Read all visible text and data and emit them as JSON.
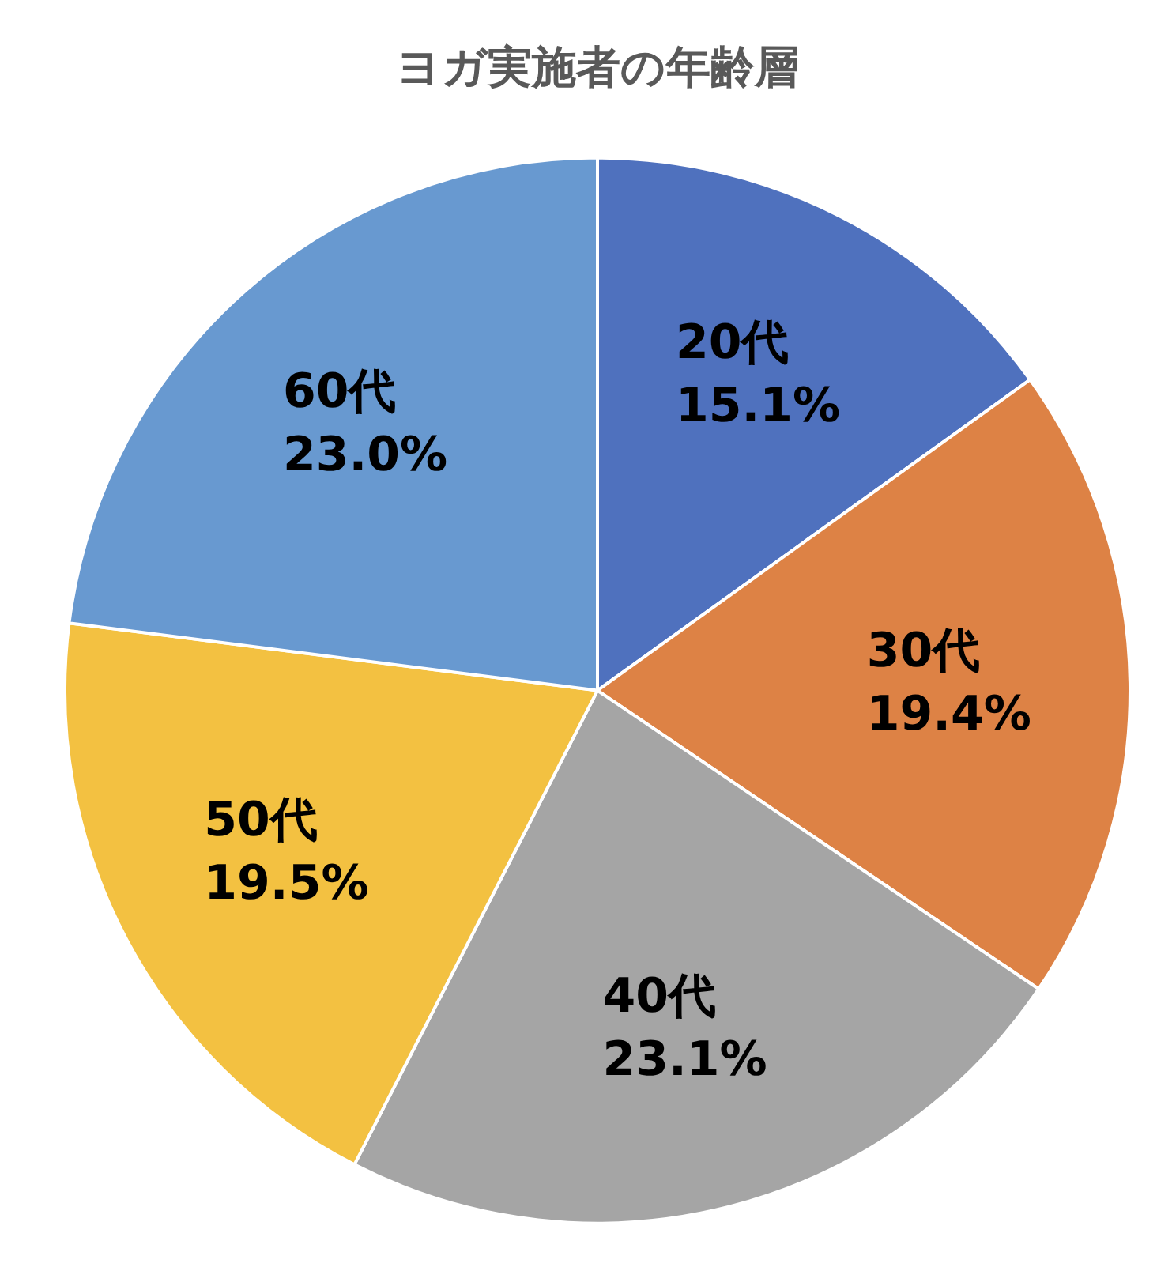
{
  "chart_data": {
    "type": "pie",
    "title": "ヨガ実施者の年齢層",
    "categories": [
      "20代",
      "30代",
      "40代",
      "50代",
      "60代"
    ],
    "values": [
      15.1,
      19.4,
      23.1,
      19.5,
      23.0
    ],
    "value_labels": [
      "15.1%",
      "19.4%",
      "23.1%",
      "19.5%",
      "23.0%"
    ],
    "colors": [
      "#4f71be",
      "#dd8245",
      "#a5a5a5",
      "#f3c141",
      "#6899d0"
    ]
  }
}
